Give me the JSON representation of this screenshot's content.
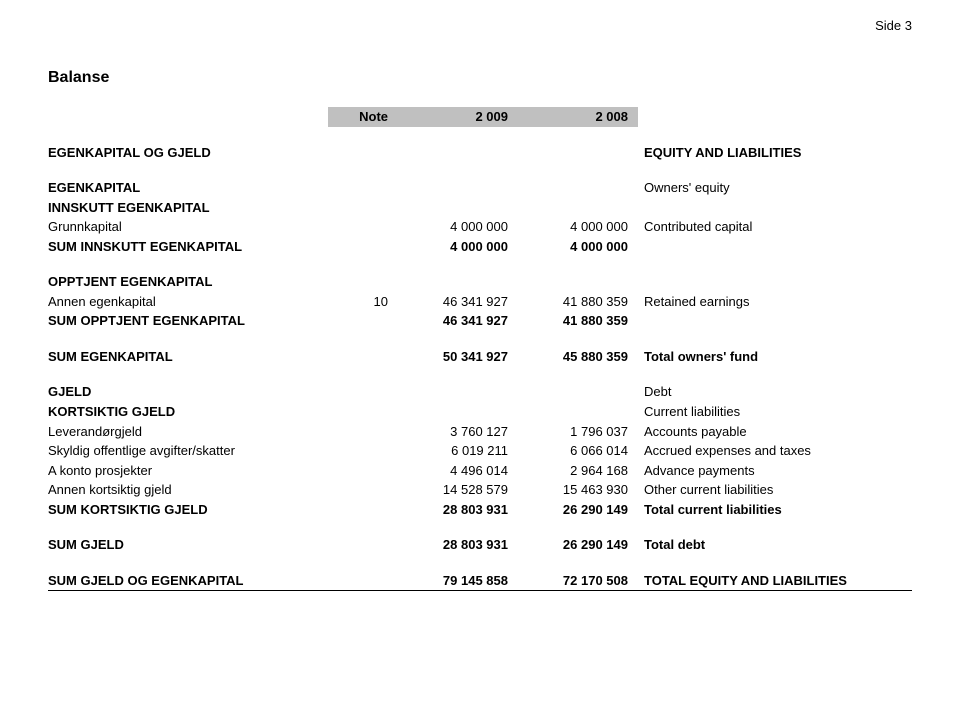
{
  "page_indicator": "Side 3",
  "title": "Balanse",
  "header": {
    "note": "Note",
    "y1": "2 009",
    "y2": "2 008"
  },
  "sections": {
    "ek_og_gjeld": {
      "label": "EGENKAPITAL OG GJELD",
      "desc": "EQUITY AND LIABILITIES"
    },
    "ek": {
      "label": "EGENKAPITAL",
      "desc": "Owners' equity"
    },
    "innskutt_ek": {
      "label": "INNSKUTT EGENKAPITAL"
    },
    "grunnkapital": {
      "label": "Grunnkapital",
      "y1": "4 000 000",
      "y2": "4 000 000",
      "desc": "Contributed capital"
    },
    "sum_innskutt_ek": {
      "label": "SUM INNSKUTT EGENKAPITAL",
      "y1": "4 000 000",
      "y2": "4 000 000"
    },
    "opptjent_ek": {
      "label": "OPPTJENT EGENKAPITAL"
    },
    "annen_ek": {
      "label": "Annen egenkapital",
      "note": "10",
      "y1": "46 341 927",
      "y2": "41 880 359",
      "desc": "Retained earnings"
    },
    "sum_opptjent_ek": {
      "label": "SUM OPPTJENT EGENKAPITAL",
      "y1": "46 341 927",
      "y2": "41 880 359"
    },
    "sum_ek": {
      "label": "SUM EGENKAPITAL",
      "y1": "50 341 927",
      "y2": "45 880 359",
      "desc": "Total owners' fund"
    },
    "gjeld": {
      "label": "GJELD",
      "desc": "Debt"
    },
    "kortsiktig_gjeld": {
      "label": "KORTSIKTIG GJELD",
      "desc": "Current liabilities"
    },
    "leverandorgjeld": {
      "label": "Leverandørgjeld",
      "y1": "3 760 127",
      "y2": "1 796 037",
      "desc": "Accounts payable"
    },
    "skyldig": {
      "label": "Skyldig offentlige avgifter/skatter",
      "y1": "6 019 211",
      "y2": "6 066 014",
      "desc": "Accrued expenses and taxes"
    },
    "akonto": {
      "label": "A konto prosjekter",
      "y1": "4 496 014",
      "y2": "2 964 168",
      "desc": "Advance payments"
    },
    "annen_kortsiktig": {
      "label": "Annen kortsiktig gjeld",
      "y1": "14 528 579",
      "y2": "15 463 930",
      "desc": "Other current liabilities"
    },
    "sum_kortsiktig": {
      "label": "SUM KORTSIKTIG GJELD",
      "y1": "28 803 931",
      "y2": "26 290 149",
      "desc": "Total current liabilities"
    },
    "sum_gjeld": {
      "label": "SUM GJELD",
      "y1": "28 803 931",
      "y2": "26 290 149",
      "desc": "Total debt"
    },
    "sum_gjeld_ek": {
      "label": "SUM GJELD OG EGENKAPITAL",
      "y1": "79 145 858",
      "y2": "72 170 508",
      "desc": "TOTAL EQUITY AND LIABILITIES"
    }
  }
}
